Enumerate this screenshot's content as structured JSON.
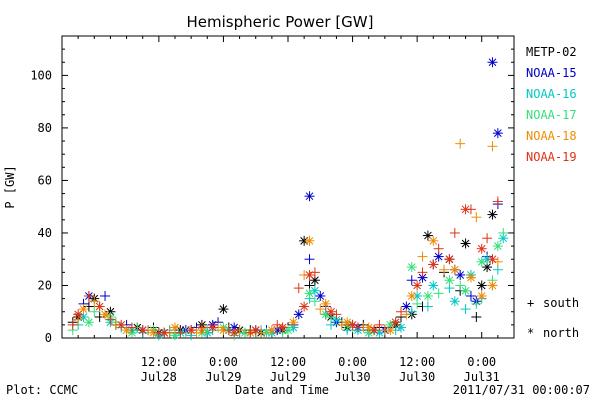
{
  "chart_data": {
    "type": "scatter",
    "title": "Hemispheric Power [GW]",
    "xlabel": "Date and Time",
    "ylabel": "P [GW]",
    "ylim": [
      0,
      115
    ],
    "yticks": [
      0,
      20,
      40,
      60,
      80,
      100
    ],
    "xlim_hours": [
      0,
      84
    ],
    "xticks": [
      {
        "h": 18,
        "line1": "12:00",
        "line2": "Jul28"
      },
      {
        "h": 30,
        "line1": "0:00",
        "line2": "Jul29"
      },
      {
        "h": 42,
        "line1": "12:00",
        "line2": "Jul29"
      },
      {
        "h": 54,
        "line1": "0:00",
        "line2": "Jul30"
      },
      {
        "h": 66,
        "line1": "12:00",
        "line2": "Jul30"
      },
      {
        "h": 78,
        "line1": "0:00",
        "line2": "Jul31"
      }
    ],
    "grid": false,
    "legend_position": "right",
    "marker_legend": [
      {
        "symbol": "+",
        "label": "south"
      },
      {
        "symbol": "*",
        "label": "north"
      }
    ],
    "series": [
      {
        "name": "METP-02",
        "color": "#000000",
        "south": [
          [
            2,
            6
          ],
          [
            5,
            12
          ],
          [
            7,
            8
          ],
          [
            10,
            5
          ],
          [
            13,
            3
          ],
          [
            17,
            4
          ],
          [
            20,
            2
          ],
          [
            24,
            3
          ],
          [
            27,
            2
          ],
          [
            31,
            4
          ],
          [
            35,
            3
          ],
          [
            39,
            2
          ],
          [
            42,
            4
          ],
          [
            46,
            20
          ],
          [
            49,
            9
          ],
          [
            52,
            6
          ],
          [
            56,
            5
          ],
          [
            59,
            4
          ],
          [
            63,
            8
          ],
          [
            67,
            12
          ],
          [
            71,
            25
          ],
          [
            74,
            18
          ],
          [
            77,
            8
          ],
          [
            80,
            20
          ]
        ],
        "north": [
          [
            3,
            8
          ],
          [
            6,
            15
          ],
          [
            9,
            10
          ],
          [
            14,
            4
          ],
          [
            18,
            2
          ],
          [
            22,
            3
          ],
          [
            26,
            5
          ],
          [
            30,
            11
          ],
          [
            33,
            3
          ],
          [
            37,
            2
          ],
          [
            41,
            3
          ],
          [
            45,
            37
          ],
          [
            47,
            22
          ],
          [
            50,
            8
          ],
          [
            53,
            4
          ],
          [
            58,
            3
          ],
          [
            62,
            5
          ],
          [
            65,
            9
          ],
          [
            68,
            39
          ],
          [
            72,
            30
          ],
          [
            75,
            36
          ],
          [
            78,
            20
          ],
          [
            80,
            47
          ],
          [
            79,
            27
          ]
        ]
      },
      {
        "name": "NOAA-15",
        "color": "#0000cc",
        "south": [
          [
            4,
            13
          ],
          [
            8,
            16
          ],
          [
            12,
            5
          ],
          [
            16,
            3
          ],
          [
            21,
            2
          ],
          [
            25,
            4
          ],
          [
            29,
            6
          ],
          [
            34,
            2
          ],
          [
            38,
            3
          ],
          [
            43,
            5
          ],
          [
            46,
            30
          ],
          [
            49,
            12
          ],
          [
            54,
            5
          ],
          [
            57,
            3
          ],
          [
            61,
            4
          ],
          [
            65,
            22
          ],
          [
            69,
            28
          ],
          [
            73,
            26
          ],
          [
            76,
            16
          ],
          [
            79,
            31
          ],
          [
            81,
            51
          ]
        ],
        "north": [
          [
            5,
            16
          ],
          [
            15,
            3
          ],
          [
            19,
            2
          ],
          [
            23,
            3
          ],
          [
            28,
            5
          ],
          [
            32,
            4
          ],
          [
            36,
            3
          ],
          [
            40,
            3
          ],
          [
            44,
            9
          ],
          [
            46,
            54
          ],
          [
            48,
            16
          ],
          [
            51,
            6
          ],
          [
            55,
            4
          ],
          [
            60,
            3
          ],
          [
            64,
            12
          ],
          [
            67,
            23
          ],
          [
            70,
            31
          ],
          [
            74,
            24
          ],
          [
            77,
            14
          ],
          [
            80,
            105
          ],
          [
            81,
            78
          ]
        ]
      },
      {
        "name": "NOAA-16",
        "color": "#00c8c8",
        "south": [
          [
            3,
            5
          ],
          [
            7,
            12
          ],
          [
            11,
            4
          ],
          [
            15,
            2
          ],
          [
            20,
            3
          ],
          [
            24,
            1
          ],
          [
            28,
            3
          ],
          [
            33,
            2
          ],
          [
            37,
            3
          ],
          [
            42,
            3
          ],
          [
            46,
            15
          ],
          [
            50,
            5
          ],
          [
            53,
            3
          ],
          [
            57,
            2
          ],
          [
            62,
            3
          ],
          [
            65,
            10
          ],
          [
            68,
            12
          ],
          [
            72,
            19
          ],
          [
            75,
            11
          ],
          [
            78,
            15
          ],
          [
            81,
            26
          ]
        ],
        "north": [
          [
            4,
            8
          ],
          [
            9,
            6
          ],
          [
            13,
            3
          ],
          [
            18,
            1
          ],
          [
            22,
            2
          ],
          [
            27,
            2
          ],
          [
            31,
            3
          ],
          [
            35,
            2
          ],
          [
            39,
            2
          ],
          [
            43,
            4
          ],
          [
            47,
            18
          ],
          [
            51,
            7
          ],
          [
            55,
            3
          ],
          [
            59,
            2
          ],
          [
            63,
            4
          ],
          [
            66,
            16
          ],
          [
            69,
            20
          ],
          [
            73,
            14
          ],
          [
            76,
            24
          ],
          [
            79,
            30
          ],
          [
            82,
            38
          ]
        ]
      },
      {
        "name": "NOAA-17",
        "color": "#33e07a",
        "south": [
          [
            2,
            3
          ],
          [
            6,
            10
          ],
          [
            10,
            6
          ],
          [
            14,
            4
          ],
          [
            19,
            2
          ],
          [
            23,
            2
          ],
          [
            27,
            3
          ],
          [
            32,
            1
          ],
          [
            36,
            2
          ],
          [
            41,
            2
          ],
          [
            47,
            14
          ],
          [
            50,
            8
          ],
          [
            54,
            4
          ],
          [
            58,
            3
          ],
          [
            62,
            6
          ],
          [
            66,
            13
          ],
          [
            70,
            17
          ],
          [
            74,
            20
          ],
          [
            77,
            13
          ],
          [
            80,
            22
          ],
          [
            82,
            40
          ]
        ],
        "north": [
          [
            5,
            6
          ],
          [
            9,
            8
          ],
          [
            13,
            2
          ],
          [
            17,
            3
          ],
          [
            21,
            1
          ],
          [
            26,
            2
          ],
          [
            30,
            4
          ],
          [
            34,
            2
          ],
          [
            38,
            2
          ],
          [
            42,
            3
          ],
          [
            46,
            17
          ],
          [
            49,
            9
          ],
          [
            53,
            5
          ],
          [
            57,
            2
          ],
          [
            61,
            5
          ],
          [
            65,
            27
          ],
          [
            68,
            16
          ],
          [
            72,
            22
          ],
          [
            75,
            18
          ],
          [
            78,
            29
          ],
          [
            81,
            35
          ]
        ]
      },
      {
        "name": "NOAA-18",
        "color": "#f08c00",
        "south": [
          [
            3,
            7
          ],
          [
            6,
            14
          ],
          [
            10,
            5
          ],
          [
            16,
            3
          ],
          [
            20,
            2
          ],
          [
            25,
            2
          ],
          [
            29,
            4
          ],
          [
            33,
            3
          ],
          [
            37,
            2
          ],
          [
            41,
            4
          ],
          [
            45,
            24
          ],
          [
            48,
            11
          ],
          [
            52,
            5
          ],
          [
            56,
            4
          ],
          [
            60,
            3
          ],
          [
            64,
            9
          ],
          [
            67,
            31
          ],
          [
            71,
            26
          ],
          [
            74,
            74
          ],
          [
            77,
            46
          ],
          [
            80,
            73
          ],
          [
            81,
            29
          ]
        ],
        "north": [
          [
            4,
            11
          ],
          [
            8,
            9
          ],
          [
            12,
            3
          ],
          [
            17,
            2
          ],
          [
            21,
            4
          ],
          [
            26,
            3
          ],
          [
            30,
            3
          ],
          [
            35,
            2
          ],
          [
            39,
            3
          ],
          [
            43,
            6
          ],
          [
            46,
            37
          ],
          [
            49,
            13
          ],
          [
            53,
            6
          ],
          [
            57,
            4
          ],
          [
            61,
            3
          ],
          [
            65,
            16
          ],
          [
            69,
            37
          ],
          [
            73,
            26
          ],
          [
            76,
            23
          ],
          [
            78,
            16
          ],
          [
            80,
            20
          ]
        ]
      },
      {
        "name": "NOAA-19",
        "color": "#e03214",
        "south": [
          [
            2,
            5
          ],
          [
            5,
            16
          ],
          [
            9,
            7
          ],
          [
            13,
            4
          ],
          [
            18,
            2
          ],
          [
            22,
            2
          ],
          [
            26,
            4
          ],
          [
            31,
            3
          ],
          [
            35,
            2
          ],
          [
            40,
            5
          ],
          [
            44,
            19
          ],
          [
            47,
            25
          ],
          [
            51,
            9
          ],
          [
            55,
            4
          ],
          [
            59,
            5
          ],
          [
            63,
            10
          ],
          [
            67,
            25
          ],
          [
            70,
            34
          ],
          [
            73,
            40
          ],
          [
            76,
            49
          ],
          [
            79,
            38
          ],
          [
            81,
            52
          ]
        ],
        "north": [
          [
            3,
            9
          ],
          [
            7,
            12
          ],
          [
            11,
            5
          ],
          [
            15,
            3
          ],
          [
            19,
            2
          ],
          [
            24,
            3
          ],
          [
            28,
            4
          ],
          [
            32,
            2
          ],
          [
            36,
            3
          ],
          [
            41,
            4
          ],
          [
            45,
            12
          ],
          [
            46,
            24
          ],
          [
            50,
            10
          ],
          [
            54,
            5
          ],
          [
            58,
            3
          ],
          [
            62,
            6
          ],
          [
            66,
            20
          ],
          [
            69,
            28
          ],
          [
            72,
            30
          ],
          [
            75,
            49
          ],
          [
            78,
            34
          ],
          [
            80,
            30
          ]
        ]
      }
    ]
  },
  "footer": {
    "plot_source": "Plot: CCMC",
    "timestamp": "2011/07/31 00:00:07"
  }
}
